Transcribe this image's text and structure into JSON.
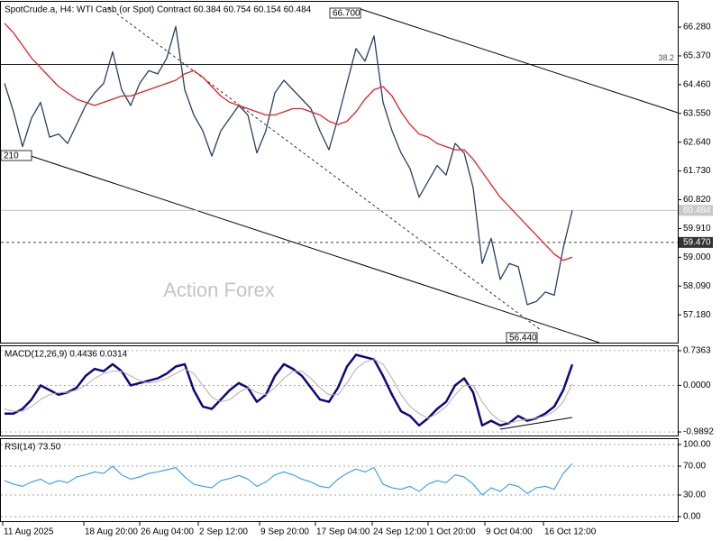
{
  "chart_data": [
    {
      "type": "line",
      "title": "SpotCrude.a, H4:  WTI Cash (or Spot) Contract  60.384 60.754 60.154 60.484",
      "watermark": "Action Forex",
      "xlim": [
        -0.5,
        74.5
      ],
      "xticks": [
        {
          "value": -0.2,
          "label": "11 Aug 2025"
        },
        {
          "value": 8.8,
          "label": "18 Aug 20:00"
        },
        {
          "value": 15,
          "label": "26 Aug 04:00"
        },
        {
          "value": 21.5,
          "label": "2 Sep 12:00"
        },
        {
          "value": 28.3,
          "label": "9 Sep 20:00"
        },
        {
          "value": 34.5,
          "label": "17 Sep 04:00"
        },
        {
          "value": 40.8,
          "label": "24 Sep 12:00"
        },
        {
          "value": 47,
          "label": "1 Oct 20:00"
        },
        {
          "value": 53.3,
          "label": "9 Oct 04:00"
        },
        {
          "value": 59.8,
          "label": "16 Oct 12:00"
        }
      ],
      "ylim": [
        56.3,
        67.08
      ],
      "yticks": [
        {
          "value": 66.28,
          "label": "66.280"
        },
        {
          "value": 65.37,
          "label": "65.370"
        },
        {
          "value": 64.46,
          "label": "64.460"
        },
        {
          "value": 63.55,
          "label": "63.550"
        },
        {
          "value": 62.64,
          "label": "62.640"
        },
        {
          "value": 61.73,
          "label": "61.730"
        },
        {
          "value": 60.82,
          "label": "60.820"
        },
        {
          "value": 59.91,
          "label": "59.910"
        },
        {
          "value": 59.0,
          "label": "59.000"
        },
        {
          "value": 58.09,
          "label": "58.090"
        },
        {
          "value": 57.18,
          "label": "57.180"
        }
      ],
      "grid": false,
      "series": [
        {
          "color": "#2b3f66",
          "values": [
            64.5,
            63.6,
            62.5,
            63.4,
            63.9,
            62.8,
            62.9,
            62.6,
            63.2,
            63.8,
            64.2,
            64.5,
            65.5,
            64.3,
            63.8,
            64.5,
            64.9,
            64.8,
            65.3,
            66.3,
            64.3,
            63.5,
            63.0,
            62.2,
            63.0,
            63.4,
            63.8,
            63.5,
            62.3,
            63.0,
            64.2,
            64.6,
            64.3,
            64.0,
            63.7,
            63.0,
            62.4,
            63.4,
            64.5,
            65.6,
            65.2,
            66.0,
            63.9,
            63.0,
            62.3,
            61.8,
            60.9,
            61.4,
            61.9,
            61.6,
            62.6,
            62.3,
            61.2,
            58.8,
            59.6,
            58.3,
            58.8,
            58.7,
            57.5,
            57.6,
            57.9,
            57.8,
            59.3,
            60.484
          ]
        },
        {
          "color": "#e32222",
          "values": [
            66.4,
            66.1,
            65.7,
            65.3,
            65.0,
            64.7,
            64.4,
            64.2,
            64.0,
            63.9,
            63.8,
            63.9,
            64.0,
            64.1,
            64.1,
            64.2,
            64.3,
            64.4,
            64.5,
            64.6,
            64.8,
            64.9,
            64.7,
            64.4,
            64.1,
            63.9,
            63.8,
            63.7,
            63.6,
            63.5,
            63.5,
            63.6,
            63.7,
            63.7,
            63.6,
            63.5,
            63.3,
            63.2,
            63.3,
            63.6,
            64.0,
            64.3,
            64.4,
            64.1,
            63.6,
            63.2,
            62.9,
            62.8,
            62.6,
            62.5,
            62.4,
            62.4,
            62.1,
            61.7,
            61.3,
            60.9,
            60.6,
            60.3,
            60.0,
            59.7,
            59.4,
            59.1,
            58.9,
            59.0
          ]
        }
      ],
      "hlines": [
        {
          "value": 65.1,
          "label": "38.2"
        },
        {
          "value": 60.484,
          "label": "60.484"
        },
        {
          "value": 59.47,
          "label": "59.470"
        }
      ],
      "annotations": [
        {
          "label": "66.700"
        },
        {
          "label": "56.440"
        },
        {
          "label": "210"
        }
      ]
    },
    {
      "type": "line",
      "title": "MACD(12,26,9) 0.4436 0.0314",
      "ylim": [
        -1.065,
        0.831
      ],
      "yticks": [
        0.7363,
        {
          "value": 0,
          "label": "0.0000"
        },
        -0.9892
      ],
      "grid": true,
      "series": [
        {
          "color": "#0a0a80",
          "values": [
            -0.6,
            -0.6,
            -0.5,
            -0.3,
            0.0,
            -0.1,
            -0.2,
            -0.15,
            -0.05,
            0.2,
            0.35,
            0.3,
            0.45,
            0.3,
            0.0,
            0.05,
            0.1,
            0.15,
            0.25,
            0.4,
            0.45,
            -0.1,
            -0.45,
            -0.5,
            -0.3,
            -0.1,
            0.05,
            -0.05,
            -0.35,
            -0.2,
            0.2,
            0.45,
            0.35,
            0.2,
            -0.05,
            -0.3,
            -0.35,
            -0.05,
            0.4,
            0.65,
            0.6,
            0.55,
            0.2,
            -0.2,
            -0.55,
            -0.65,
            -0.85,
            -0.7,
            -0.5,
            -0.35,
            0.0,
            0.15,
            -0.15,
            -0.85,
            -0.75,
            -0.85,
            -0.8,
            -0.65,
            -0.75,
            -0.7,
            -0.6,
            -0.45,
            -0.1,
            0.4436
          ]
        },
        {
          "color": "#c9a3a3",
          "values": [
            -0.5,
            -0.55,
            -0.55,
            -0.45,
            -0.3,
            -0.2,
            -0.15,
            -0.15,
            -0.1,
            0.0,
            0.15,
            0.25,
            0.3,
            0.3,
            0.2,
            0.1,
            0.05,
            0.08,
            0.15,
            0.25,
            0.35,
            0.25,
            0.0,
            -0.25,
            -0.35,
            -0.3,
            -0.15,
            -0.05,
            -0.15,
            -0.2,
            -0.05,
            0.15,
            0.3,
            0.3,
            0.15,
            -0.05,
            -0.2,
            -0.2,
            0.05,
            0.35,
            0.5,
            0.55,
            0.45,
            0.15,
            -0.2,
            -0.45,
            -0.6,
            -0.7,
            -0.6,
            -0.45,
            -0.2,
            0.0,
            0.0,
            -0.35,
            -0.6,
            -0.75,
            -0.8,
            -0.75,
            -0.72,
            -0.7,
            -0.65,
            -0.55,
            -0.35,
            0.0314
          ]
        }
      ]
    },
    {
      "type": "line",
      "title": "RSI(14) 73.50",
      "ylim": [
        -6.25,
        107.5
      ],
      "yticks": [
        {
          "value": 100,
          "label": "100.00"
        },
        {
          "value": 70,
          "label": "70.00"
        },
        {
          "value": 30,
          "label": "30.00"
        },
        {
          "value": 0,
          "label": "0.00"
        }
      ],
      "grid": true,
      "series": [
        {
          "color": "#1e90ff",
          "values": [
            50,
            45,
            42,
            48,
            52,
            45,
            50,
            47,
            55,
            58,
            62,
            60,
            70,
            58,
            52,
            55,
            60,
            62,
            65,
            68,
            55,
            45,
            42,
            40,
            50,
            53,
            57,
            52,
            42,
            48,
            58,
            62,
            58,
            52,
            48,
            42,
            40,
            52,
            60,
            66,
            62,
            68,
            45,
            40,
            38,
            42,
            35,
            45,
            50,
            47,
            58,
            55,
            45,
            30,
            40,
            35,
            45,
            42,
            32,
            40,
            42,
            38,
            60,
            73.5
          ]
        }
      ]
    }
  ]
}
